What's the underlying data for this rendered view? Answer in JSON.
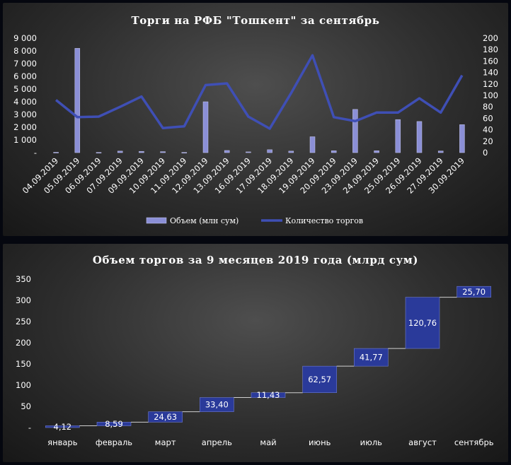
{
  "chart_data": [
    {
      "type": "bar+line",
      "title": "Торги на РФБ \"Тошкент\" за сентябрь",
      "categories": [
        "04.09.2019",
        "05.09.2019",
        "06.09.2019",
        "07.09.2019",
        "09.09.2019",
        "10.09.2019",
        "11.09.2019",
        "12.09.2019",
        "13.09.2019",
        "16.09.2019",
        "17.09.2019",
        "18.09.2019",
        "19.09.2019",
        "20.09.2019",
        "23.09.2019",
        "24.09.2019",
        "25.09.2019",
        "26.09.2019",
        "27.09.2019",
        "30.09.2019"
      ],
      "series": [
        {
          "name": "Объем (млн сум)",
          "kind": "bar",
          "axis": "left",
          "values": [
            30,
            8200,
            20,
            120,
            100,
            80,
            20,
            4000,
            170,
            60,
            230,
            120,
            1250,
            150,
            3400,
            150,
            2600,
            2450,
            130,
            2200
          ]
        },
        {
          "name": "Количество торгов",
          "kind": "line",
          "axis": "right",
          "values": [
            92,
            62,
            63,
            80,
            98,
            43,
            46,
            118,
            121,
            63,
            42,
            104,
            170,
            62,
            55,
            70,
            70,
            95,
            70,
            135
          ]
        }
      ],
      "ylim_left": [
        0,
        9000
      ],
      "yticks_left": [
        "-",
        "1 000",
        "2 000",
        "3 000",
        "4 000",
        "5 000",
        "6 000",
        "7 000",
        "8 000",
        "9 000"
      ],
      "ylim_right": [
        0,
        200
      ],
      "yticks_right": [
        "0",
        "20",
        "40",
        "60",
        "80",
        "100",
        "120",
        "140",
        "160",
        "180",
        "200"
      ],
      "legend": "bottom",
      "colors": {
        "bar": "#8b8fd6",
        "line": "#3f4fb5"
      }
    },
    {
      "type": "waterfall",
      "title": "Объем торгов за 9 месяцев 2019 года (млрд сум)",
      "categories": [
        "январь",
        "февраль",
        "март",
        "апрель",
        "май",
        "июнь",
        "июль",
        "август",
        "сентябрь"
      ],
      "values": [
        4.12,
        8.59,
        24.63,
        33.4,
        11.43,
        62.57,
        41.77,
        120.76,
        25.7
      ],
      "labels": [
        "4,12",
        "8,59",
        "24,63",
        "33,40",
        "11,43",
        "62,57",
        "41,77",
        "120,76",
        "25,70"
      ],
      "ylim": [
        0,
        350
      ],
      "yticks": [
        "-",
        "50",
        "100",
        "150",
        "200",
        "250",
        "300",
        "350"
      ],
      "grid": false,
      "colors": {
        "bar": "#2a3a9a",
        "connector": "#cfcfcf"
      }
    }
  ]
}
